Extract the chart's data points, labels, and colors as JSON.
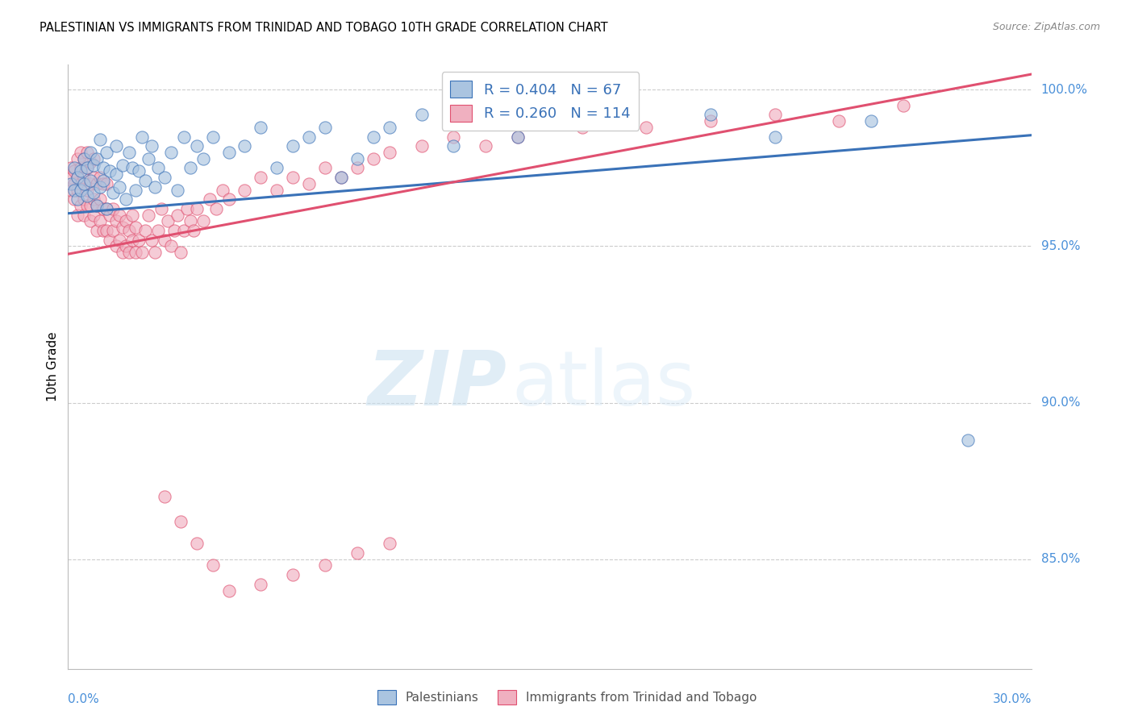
{
  "title": "PALESTINIAN VS IMMIGRANTS FROM TRINIDAD AND TOBAGO 10TH GRADE CORRELATION CHART",
  "source": "Source: ZipAtlas.com",
  "ylabel": "10th Grade",
  "xmin": 0.0,
  "xmax": 0.3,
  "ymin": 0.815,
  "ymax": 1.008,
  "r_blue": 0.404,
  "n_blue": 67,
  "r_pink": 0.26,
  "n_pink": 114,
  "blue_color": "#aac4e0",
  "pink_color": "#f0b0c0",
  "line_blue": "#3a72b8",
  "line_pink": "#e05070",
  "axis_label_color": "#4a90d9",
  "legend_text_color": "#3a72b8",
  "watermark_zip": "ZIP",
  "watermark_atlas": "atlas",
  "blue_line_x0": 0.0,
  "blue_line_y0": 0.9605,
  "blue_line_x1": 0.3,
  "blue_line_y1": 0.9855,
  "pink_line_x0": 0.0,
  "pink_line_y0": 0.9475,
  "pink_line_x1": 0.3,
  "pink_line_y1": 1.005,
  "blue_scatter_x": [
    0.001,
    0.002,
    0.002,
    0.003,
    0.003,
    0.004,
    0.004,
    0.005,
    0.005,
    0.006,
    0.006,
    0.007,
    0.007,
    0.008,
    0.008,
    0.009,
    0.009,
    0.01,
    0.01,
    0.011,
    0.011,
    0.012,
    0.012,
    0.013,
    0.014,
    0.015,
    0.015,
    0.016,
    0.017,
    0.018,
    0.019,
    0.02,
    0.021,
    0.022,
    0.023,
    0.024,
    0.025,
    0.026,
    0.027,
    0.028,
    0.03,
    0.032,
    0.034,
    0.036,
    0.038,
    0.04,
    0.042,
    0.045,
    0.05,
    0.055,
    0.06,
    0.065,
    0.07,
    0.075,
    0.08,
    0.085,
    0.09,
    0.095,
    0.1,
    0.11,
    0.12,
    0.14,
    0.16,
    0.2,
    0.22,
    0.25,
    0.28
  ],
  "blue_scatter_y": [
    0.97,
    0.968,
    0.975,
    0.965,
    0.972,
    0.968,
    0.974,
    0.97,
    0.978,
    0.966,
    0.975,
    0.971,
    0.98,
    0.967,
    0.976,
    0.963,
    0.978,
    0.969,
    0.984,
    0.971,
    0.975,
    0.962,
    0.98,
    0.974,
    0.967,
    0.973,
    0.982,
    0.969,
    0.976,
    0.965,
    0.98,
    0.975,
    0.968,
    0.974,
    0.985,
    0.971,
    0.978,
    0.982,
    0.969,
    0.975,
    0.972,
    0.98,
    0.968,
    0.985,
    0.975,
    0.982,
    0.978,
    0.985,
    0.98,
    0.982,
    0.988,
    0.975,
    0.982,
    0.985,
    0.988,
    0.972,
    0.978,
    0.985,
    0.988,
    0.992,
    0.982,
    0.985,
    0.99,
    0.992,
    0.985,
    0.99,
    0.888
  ],
  "pink_scatter_x": [
    0.001,
    0.001,
    0.001,
    0.002,
    0.002,
    0.002,
    0.003,
    0.003,
    0.003,
    0.003,
    0.004,
    0.004,
    0.004,
    0.004,
    0.005,
    0.005,
    0.005,
    0.005,
    0.006,
    0.006,
    0.006,
    0.006,
    0.007,
    0.007,
    0.007,
    0.007,
    0.008,
    0.008,
    0.008,
    0.008,
    0.009,
    0.009,
    0.009,
    0.01,
    0.01,
    0.01,
    0.011,
    0.011,
    0.011,
    0.012,
    0.012,
    0.012,
    0.013,
    0.013,
    0.014,
    0.014,
    0.015,
    0.015,
    0.016,
    0.016,
    0.017,
    0.017,
    0.018,
    0.018,
    0.019,
    0.019,
    0.02,
    0.02,
    0.021,
    0.021,
    0.022,
    0.023,
    0.024,
    0.025,
    0.026,
    0.027,
    0.028,
    0.029,
    0.03,
    0.031,
    0.032,
    0.033,
    0.034,
    0.035,
    0.036,
    0.037,
    0.038,
    0.039,
    0.04,
    0.042,
    0.044,
    0.046,
    0.048,
    0.05,
    0.055,
    0.06,
    0.065,
    0.07,
    0.075,
    0.08,
    0.085,
    0.09,
    0.095,
    0.1,
    0.11,
    0.12,
    0.13,
    0.14,
    0.16,
    0.18,
    0.2,
    0.22,
    0.24,
    0.26,
    0.03,
    0.035,
    0.04,
    0.045,
    0.05,
    0.06,
    0.07,
    0.08,
    0.09,
    0.1
  ],
  "pink_scatter_y": [
    0.972,
    0.968,
    0.975,
    0.965,
    0.97,
    0.974,
    0.96,
    0.968,
    0.972,
    0.978,
    0.963,
    0.97,
    0.975,
    0.98,
    0.96,
    0.965,
    0.972,
    0.978,
    0.963,
    0.968,
    0.975,
    0.98,
    0.958,
    0.963,
    0.97,
    0.977,
    0.96,
    0.965,
    0.972,
    0.978,
    0.955,
    0.963,
    0.97,
    0.958,
    0.965,
    0.972,
    0.955,
    0.962,
    0.97,
    0.955,
    0.962,
    0.97,
    0.952,
    0.96,
    0.955,
    0.962,
    0.95,
    0.958,
    0.952,
    0.96,
    0.948,
    0.956,
    0.95,
    0.958,
    0.948,
    0.955,
    0.952,
    0.96,
    0.948,
    0.956,
    0.952,
    0.948,
    0.955,
    0.96,
    0.952,
    0.948,
    0.955,
    0.962,
    0.952,
    0.958,
    0.95,
    0.955,
    0.96,
    0.948,
    0.955,
    0.962,
    0.958,
    0.955,
    0.962,
    0.958,
    0.965,
    0.962,
    0.968,
    0.965,
    0.968,
    0.972,
    0.968,
    0.972,
    0.97,
    0.975,
    0.972,
    0.975,
    0.978,
    0.98,
    0.982,
    0.985,
    0.982,
    0.985,
    0.988,
    0.988,
    0.99,
    0.992,
    0.99,
    0.995,
    0.87,
    0.862,
    0.855,
    0.848,
    0.84,
    0.842,
    0.845,
    0.848,
    0.852,
    0.855
  ]
}
